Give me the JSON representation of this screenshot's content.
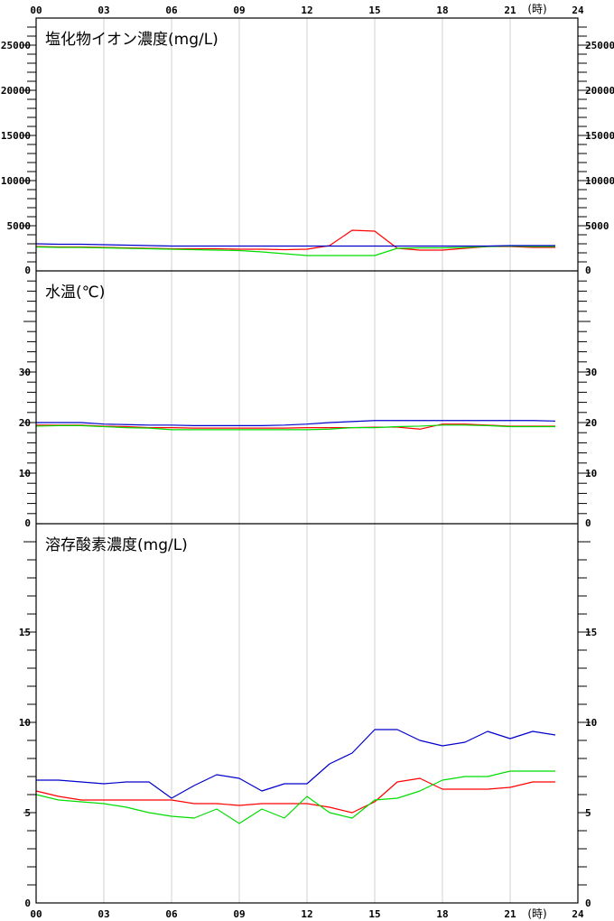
{
  "chart_data": [
    {
      "type": "line",
      "title": "塩化物イオン濃度(mg/L)",
      "ylim": [
        0,
        28000
      ],
      "y_ticks": [
        0,
        5000,
        10000,
        15000,
        20000,
        25000
      ],
      "y_tick_labels": [
        "0",
        "5000",
        "10000",
        "15000",
        "20000",
        "25000"
      ],
      "x": [
        0,
        1,
        2,
        3,
        4,
        5,
        6,
        7,
        8,
        9,
        10,
        11,
        12,
        13,
        14,
        15,
        16,
        17,
        18,
        19,
        20,
        21,
        22,
        23
      ],
      "series": [
        {
          "color": "#ff0000",
          "values": [
            2700,
            2650,
            2650,
            2600,
            2550,
            2500,
            2450,
            2450,
            2450,
            2400,
            2400,
            2350,
            2400,
            2800,
            4500,
            4400,
            2500,
            2300,
            2300,
            2500,
            2700,
            2700,
            2600,
            2600
          ]
        },
        {
          "color": "#00dd00",
          "values": [
            2650,
            2600,
            2600,
            2550,
            2500,
            2450,
            2400,
            2350,
            2300,
            2250,
            2100,
            1900,
            1700,
            1700,
            1700,
            1700,
            2500,
            2550,
            2550,
            2600,
            2700,
            2750,
            2700,
            2700
          ]
        },
        {
          "color": "#0000cc",
          "values": [
            3000,
            2950,
            2950,
            2900,
            2850,
            2800,
            2750,
            2750,
            2750,
            2750,
            2750,
            2750,
            2750,
            2750,
            2750,
            2750,
            2750,
            2750,
            2750,
            2750,
            2750,
            2800,
            2800,
            2800
          ]
        }
      ]
    },
    {
      "type": "line",
      "title": "水温(℃)",
      "ylim": [
        0,
        50
      ],
      "y_ticks": [
        0,
        10,
        20,
        30
      ],
      "y_tick_labels": [
        "0",
        "10",
        "20",
        "30"
      ],
      "x": [
        0,
        1,
        2,
        3,
        4,
        5,
        6,
        7,
        8,
        9,
        10,
        11,
        12,
        13,
        14,
        15,
        16,
        17,
        18,
        19,
        20,
        21,
        22,
        23
      ],
      "series": [
        {
          "color": "#ff0000",
          "values": [
            19.5,
            19.5,
            19.5,
            19.3,
            19.2,
            19.0,
            19.0,
            18.9,
            18.9,
            18.9,
            18.9,
            18.9,
            19.0,
            19.0,
            19.0,
            19.1,
            19.1,
            18.7,
            19.7,
            19.7,
            19.5,
            19.3,
            19.3,
            19.3
          ]
        },
        {
          "color": "#00dd00",
          "values": [
            19.3,
            19.4,
            19.4,
            19.2,
            19.0,
            18.9,
            18.6,
            18.6,
            18.6,
            18.6,
            18.6,
            18.6,
            18.6,
            18.7,
            19.0,
            19.0,
            19.2,
            19.3,
            19.5,
            19.5,
            19.4,
            19.2,
            19.2,
            19.2
          ]
        },
        {
          "color": "#0000cc",
          "values": [
            20.0,
            20.0,
            20.0,
            19.7,
            19.6,
            19.5,
            19.5,
            19.4,
            19.4,
            19.4,
            19.4,
            19.5,
            19.7,
            20.0,
            20.2,
            20.4,
            20.4,
            20.4,
            20.4,
            20.4,
            20.4,
            20.4,
            20.4,
            20.3
          ]
        }
      ]
    },
    {
      "type": "line",
      "title": "溶存酸素濃度(mg/L)",
      "ylim": [
        0,
        21
      ],
      "y_ticks": [
        0,
        5,
        10,
        15
      ],
      "y_tick_labels": [
        "0",
        "5",
        "10",
        "15"
      ],
      "x": [
        0,
        1,
        2,
        3,
        4,
        5,
        6,
        7,
        8,
        9,
        10,
        11,
        12,
        13,
        14,
        15,
        16,
        17,
        18,
        19,
        20,
        21,
        22,
        23
      ],
      "series": [
        {
          "color": "#ff0000",
          "values": [
            6.2,
            5.9,
            5.7,
            5.7,
            5.7,
            5.7,
            5.7,
            5.5,
            5.5,
            5.4,
            5.5,
            5.5,
            5.5,
            5.3,
            5.0,
            5.6,
            6.7,
            6.9,
            6.3,
            6.3,
            6.3,
            6.4,
            6.7,
            6.7
          ]
        },
        {
          "color": "#00dd00",
          "values": [
            6.0,
            5.7,
            5.6,
            5.5,
            5.3,
            5.0,
            4.8,
            4.7,
            5.2,
            4.4,
            5.2,
            4.7,
            5.9,
            5.0,
            4.7,
            5.7,
            5.8,
            6.2,
            6.8,
            7.0,
            7.0,
            7.3,
            7.3,
            7.3
          ]
        },
        {
          "color": "#0000cc",
          "values": [
            6.8,
            6.8,
            6.7,
            6.6,
            6.7,
            6.7,
            5.8,
            6.5,
            7.1,
            6.9,
            6.2,
            6.6,
            6.6,
            7.7,
            8.3,
            9.6,
            9.6,
            9.0,
            8.7,
            8.9,
            9.5,
            9.1,
            9.5,
            9.3
          ]
        }
      ]
    }
  ],
  "x_axis": {
    "min": 0,
    "max": 24,
    "labels": [
      "00",
      "03",
      "06",
      "09",
      "12",
      "15",
      "18",
      "21",
      "24"
    ],
    "label_hours": [
      0,
      3,
      6,
      9,
      12,
      15,
      18,
      21,
      24
    ],
    "unit": "(時)"
  }
}
